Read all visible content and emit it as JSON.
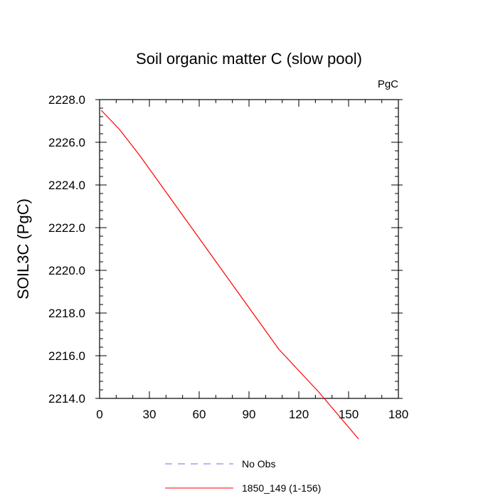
{
  "chart_data": {
    "type": "line",
    "title": "Soil organic matter C (slow pool)",
    "units": "PgC",
    "ylabel": "SOIL3C  (PgC)",
    "xlabel": "",
    "xlim": [
      0,
      180
    ],
    "ylim": [
      2214.0,
      2228.0
    ],
    "x_ticks": [
      0,
      30,
      60,
      90,
      120,
      150,
      180
    ],
    "x_tick_labels": [
      "0",
      "30",
      "60",
      "90",
      "120",
      "150",
      "180"
    ],
    "y_ticks": [
      2214.0,
      2216.0,
      2218.0,
      2220.0,
      2222.0,
      2224.0,
      2226.0,
      2228.0
    ],
    "y_tick_labels": [
      "2214.0",
      "2216.0",
      "2218.0",
      "2220.0",
      "2222.0",
      "2224.0",
      "2226.0",
      "2228.0"
    ],
    "grid": false,
    "legend_position": "bottom",
    "series": [
      {
        "name": "No Obs",
        "style": "dashed",
        "color": "#6f6fe0",
        "x": [],
        "y": []
      },
      {
        "name": "1850_149 (1-156)",
        "style": "solid",
        "color": "#ff0000",
        "x": [
          1,
          12,
          24,
          36,
          48,
          60,
          72,
          84,
          96,
          108,
          120,
          132,
          144,
          156
        ],
        "y": [
          2227.5,
          2226.6,
          2225.4,
          2224.1,
          2222.8,
          2221.5,
          2220.2,
          2218.9,
          2217.6,
          2216.3,
          2215.3,
          2214.3,
          2213.2,
          2212.1
        ]
      }
    ]
  }
}
